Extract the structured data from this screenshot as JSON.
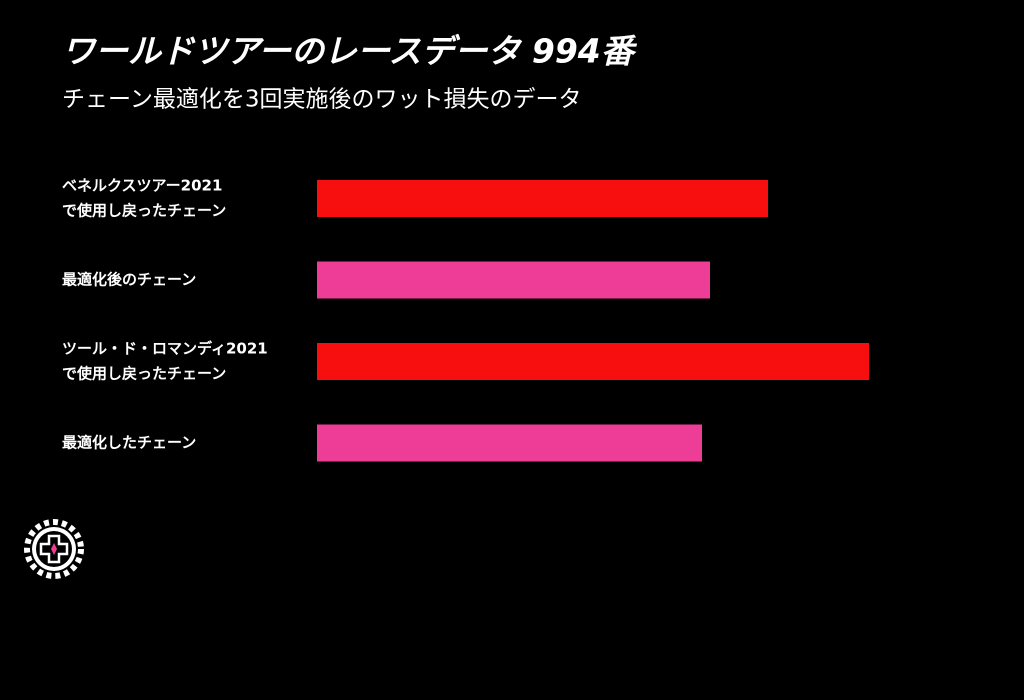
{
  "chart_data": {
    "type": "hbar",
    "title": "ワールドツアーのレースデータ 994番",
    "subtitle": "チェーン最適化を3回実施後のワット損失のデータ",
    "categories": [
      [
        "ベネルクスツアー2021",
        "で使用し戻ったチェーン"
      ],
      [
        "最適化後のチェーン"
      ],
      [
        "ツール・ド・ロマンディ2021",
        "で使用し戻ったチェーン"
      ],
      [
        "最適化したチェーン"
      ]
    ],
    "values": [
      451,
      393,
      552,
      385
    ],
    "colors": [
      "#f70f0f",
      "#ee3d96",
      "#f70f0f",
      "#ee3d96"
    ]
  }
}
